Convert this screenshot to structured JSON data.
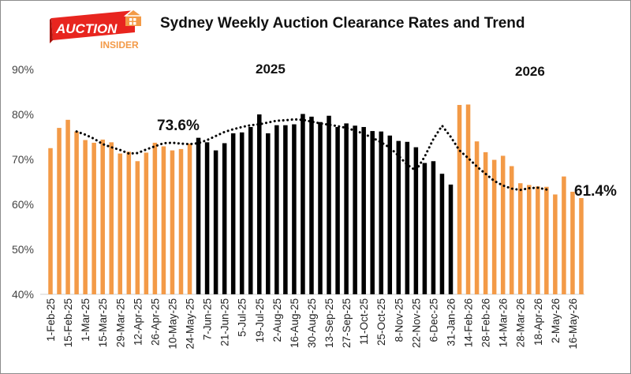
{
  "logo": {
    "word1": "AUCTION",
    "word2": "INSIDER",
    "icon": "house-icon"
  },
  "chart_data": {
    "type": "bar",
    "title": "Sydney Weekly Auction Clearance Rates and Trend",
    "ylim": [
      40,
      90
    ],
    "yticks": [
      "40%",
      "50%",
      "60%",
      "70%",
      "80%",
      "90%"
    ],
    "grid": false,
    "x_tick_labels": [
      "1-Feb-25",
      "15-Feb-25",
      "1-Mar-25",
      "15-Mar-25",
      "29-Mar-25",
      "12-Apr-25",
      "26-Apr-25",
      "10-May-25",
      "24-May-25",
      "7-Jun-25",
      "21-Jun-25",
      "5-Jul-25",
      "19-Jul-25",
      "2-Aug-25",
      "16-Aug-25",
      "30-Aug-25",
      "13-Sep-25",
      "27-Sep-25",
      "11-Oct-25",
      "25-Oct-25",
      "8-Nov-25",
      "22-Nov-25",
      "6-Dec-25",
      "31-Jan-26",
      "14-Feb-26",
      "28-Feb-26",
      "14-Mar-26",
      "28-Mar-26",
      "18-Apr-26",
      "2-May-26",
      "16-May-26"
    ],
    "label_every": 2,
    "series": [
      {
        "values": [
          72.5,
          77.0,
          78.8,
          76.2,
          74.3,
          73.7,
          74.4,
          73.8,
          71.3,
          71.7,
          69.6,
          71.5,
          73.7,
          72.9,
          72.0,
          72.3,
          73.5,
          74.8,
          73.8,
          72.0,
          73.6,
          75.8,
          76.0,
          77.2,
          80.0,
          75.8,
          77.6,
          77.6,
          77.8,
          80.1,
          79.5,
          78.3,
          79.7,
          77.2,
          78.0,
          77.5,
          77.2,
          76.3,
          76.2,
          75.3,
          74.1,
          73.9,
          72.7,
          69.2,
          69.6,
          66.8,
          64.4,
          82.1,
          82.2,
          74.0,
          71.6,
          69.9,
          70.8,
          68.5,
          64.7,
          64.3,
          64.0,
          63.9,
          62.2,
          66.2,
          62.8,
          61.4
        ],
        "colors": [
          "#F39A47",
          "#F39A47",
          "#F39A47",
          "#F39A47",
          "#F39A47",
          "#F39A47",
          "#F39A47",
          "#F39A47",
          "#F39A47",
          "#F39A47",
          "#F39A47",
          "#F39A47",
          "#F39A47",
          "#F39A47",
          "#F39A47",
          "#F39A47",
          "#F39A47",
          "#000000",
          "#000000",
          "#000000",
          "#000000",
          "#000000",
          "#000000",
          "#000000",
          "#000000",
          "#000000",
          "#000000",
          "#000000",
          "#000000",
          "#000000",
          "#000000",
          "#000000",
          "#000000",
          "#000000",
          "#000000",
          "#000000",
          "#000000",
          "#000000",
          "#000000",
          "#000000",
          "#000000",
          "#000000",
          "#000000",
          "#000000",
          "#000000",
          "#000000",
          "#000000",
          "#F39A47",
          "#F39A47",
          "#F39A47",
          "#F39A47",
          "#F39A47",
          "#F39A47",
          "#F39A47",
          "#F39A47",
          "#F39A47",
          "#F39A47",
          "#F39A47",
          "#F39A47",
          "#F39A47",
          "#F39A47",
          "#F39A47"
        ]
      },
      {
        "type": "line",
        "style": "dotted",
        "start_index": 3,
        "values": [
          76.2,
          75.5,
          74.6,
          73.4,
          72.7,
          72.1,
          71.3,
          71.4,
          72.2,
          72.9,
          73.6,
          73.7,
          73.5,
          73.4,
          73.6,
          74.3,
          75.2,
          76.1,
          76.7,
          77.2,
          77.6,
          77.8,
          78.2,
          78.6,
          78.7,
          78.9,
          78.8,
          78.4,
          78.0,
          77.7,
          77.4,
          77.0,
          76.4,
          75.7,
          74.8,
          73.8,
          72.6,
          70.8,
          68.8,
          67.5,
          70.6,
          74.5,
          77.5,
          75.0,
          72.0,
          70.3,
          68.4,
          66.8,
          65.2,
          64.2,
          63.5,
          63.2,
          63.6,
          63.7,
          63.3
        ]
      }
    ],
    "annotations": [
      {
        "text": "73.6%"
      },
      {
        "text": "61.4%"
      },
      {
        "text": "2025"
      },
      {
        "text": "2026"
      }
    ],
    "colors": {
      "orange": "#F39A47",
      "black": "#000000",
      "trend": "#000000"
    }
  }
}
